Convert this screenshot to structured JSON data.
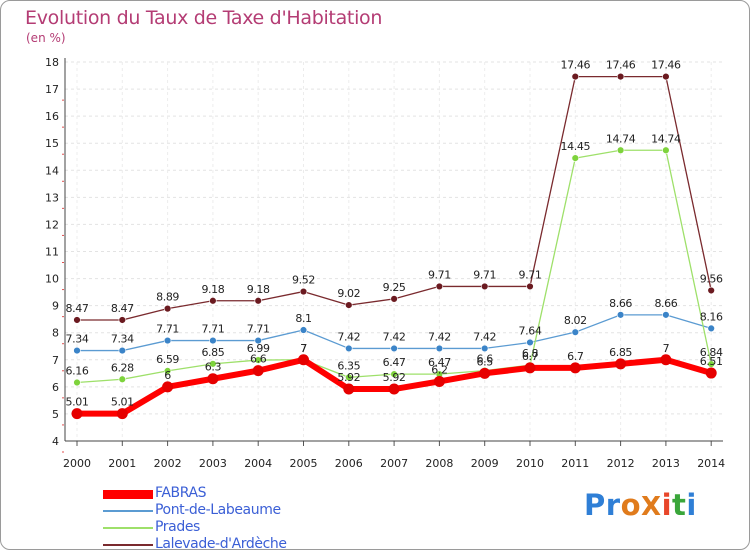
{
  "title": "Evolution du Taux de Taxe d'Habitation",
  "subtitle": "(en %)",
  "logo": {
    "text": "ProXiti",
    "letter_colors": [
      "#2f7fd6",
      "#2f7fd6",
      "#e07b1c",
      "#e07b1c",
      "#e8462a",
      "#3aa63a",
      "#2f7fd6"
    ]
  },
  "chart_data": {
    "type": "line",
    "title": "Evolution du Taux de Taxe d'Habitation",
    "ylabel": "(en %)",
    "xlabel": "",
    "ylim": [
      4,
      18
    ],
    "yticks": [
      "4",
      "5",
      "6",
      "7",
      "8",
      "9",
      "10",
      "11",
      "12",
      "13",
      "14",
      "15",
      "16",
      "17",
      "18"
    ],
    "x": [
      "2000",
      "2001",
      "2002",
      "2003",
      "2004",
      "2005",
      "2006",
      "2007",
      "2008",
      "2009",
      "2010",
      "2011",
      "2012",
      "2013",
      "2014"
    ],
    "grid": true,
    "legend": "bottom-left",
    "series": [
      {
        "name": "Lalevade-d'Ardèche",
        "color": "#7a2a2e",
        "point_color": "#6b1a20",
        "width": 1.3,
        "values": [
          8.47,
          8.47,
          8.89,
          9.18,
          9.18,
          9.52,
          9.02,
          9.25,
          9.71,
          9.71,
          9.71,
          17.46,
          17.46,
          17.46,
          9.56
        ],
        "labels": [
          "8.47",
          "8.47",
          "8.89",
          "9.18",
          "9.18",
          "9.52",
          "9.02",
          "9.25",
          "9.71",
          "9.71",
          "9.71",
          "17.46",
          "17.46",
          "17.46",
          "9.56"
        ]
      },
      {
        "name": "Pont-de-Labeaume",
        "color": "#5b9bd2",
        "point_color": "#3b84c8",
        "width": 1.3,
        "values": [
          7.34,
          7.34,
          7.71,
          7.71,
          7.71,
          8.1,
          7.42,
          7.42,
          7.42,
          7.42,
          7.64,
          8.02,
          8.66,
          8.66,
          8.16
        ],
        "labels": [
          "7.34",
          "7.34",
          "7.71",
          "7.71",
          "7.71",
          "8.1",
          "7.42",
          "7.42",
          "7.42",
          "7.42",
          "7.64",
          "8.02",
          "8.66",
          "8.66",
          "8.16"
        ]
      },
      {
        "name": "Prades",
        "color": "#9ee06a",
        "point_color": "#7ed33c",
        "width": 1.3,
        "values": [
          6.16,
          6.28,
          6.59,
          6.85,
          6.99,
          7,
          6.35,
          6.47,
          6.47,
          6.6,
          6.8,
          14.45,
          14.74,
          14.74,
          6.84
        ],
        "labels": [
          "6.16",
          "6.28",
          "6.59",
          "6.85",
          "6.99",
          "7",
          "6.35",
          "6.47",
          "6.47",
          "6.6",
          "6.8",
          "14.45",
          "14.74",
          "14.74",
          "6.84"
        ]
      },
      {
        "name": "FABRAS",
        "color": "#ff0000",
        "point_color": "#e60000",
        "width": 6,
        "values": [
          5.01,
          5.01,
          6,
          6.3,
          6.6,
          7,
          5.92,
          5.92,
          6.2,
          6.5,
          6.7,
          6.7,
          6.85,
          7,
          6.51
        ],
        "labels": [
          "5.01",
          "5.01",
          "6",
          "6.3",
          "6.6",
          "7",
          "5.92",
          "5.92",
          "6.2",
          "6.5",
          "6.7",
          "6.7",
          "6.85",
          "7",
          "6.51"
        ]
      }
    ],
    "legend_order": [
      "FABRAS",
      "Pont-de-Labeaume",
      "Prades",
      "Lalevade-d'Ardèche"
    ]
  }
}
